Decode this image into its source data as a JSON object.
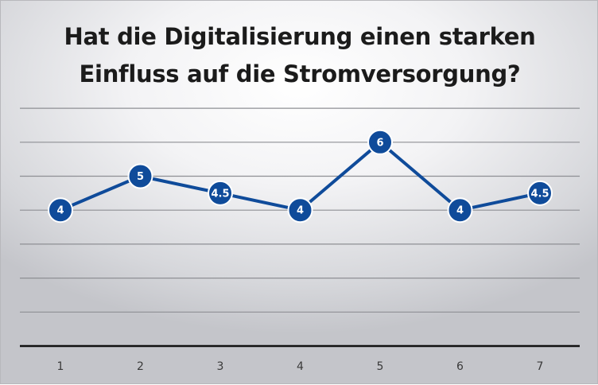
{
  "chart_data": {
    "type": "line",
    "title": "Hat die Digitalisierung einen starken Einfluss auf die Stromversorgung?",
    "title_lines": [
      "Hat die Digitalisierung einen starken",
      "Einfluss auf die Stromversorgung?"
    ],
    "xlabel": "",
    "ylabel": "",
    "categories": [
      "1",
      "2",
      "3",
      "4",
      "5",
      "6",
      "7"
    ],
    "series": [
      {
        "values": [
          4,
          5,
          4.5,
          4,
          6,
          4,
          4.5
        ],
        "labels": [
          "4",
          "5",
          "4.5",
          "4",
          "6",
          "4",
          "4.5"
        ]
      }
    ],
    "ylim": [
      0,
      7
    ],
    "y_gridlines": [
      1,
      2,
      3,
      4,
      5,
      6,
      7
    ],
    "grid": true,
    "y_tick_labels_shown": false,
    "legend": "none",
    "colors": {
      "series": "#0f4b9a",
      "gridline": "#8e8f94",
      "axis": "#111111"
    }
  }
}
